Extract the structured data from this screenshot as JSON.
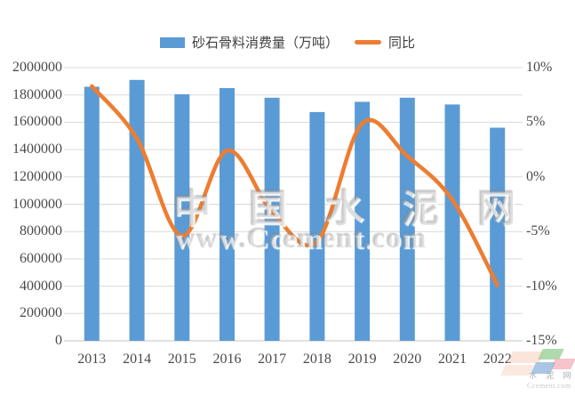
{
  "legend": {
    "bar_label": "砂石骨料消费量（万吨）",
    "line_label": "同比"
  },
  "watermark": {
    "line1": "中 国 水 泥 网",
    "line2": "www.Ccement.com"
  },
  "corner_logo": {
    "text": "水 泥 网",
    "subtext": "Ccement.com"
  },
  "colors": {
    "bar": "#5B9BD5",
    "line": "#ED7D31",
    "gridline": "#D9D9D9",
    "baseline": "#C6C6C6",
    "tick_text": "#4a4a4a"
  },
  "chart_data": {
    "type": "bar+line combo",
    "categories": [
      "2013",
      "2014",
      "2015",
      "2016",
      "2017",
      "2018",
      "2019",
      "2020",
      "2021",
      "2022"
    ],
    "series": [
      {
        "name": "砂石骨料消费量（万吨）",
        "type": "bar",
        "axis": "left",
        "color": "#5B9BD5",
        "values": [
          1860000,
          1910000,
          1805000,
          1850000,
          1780000,
          1675000,
          1750000,
          1780000,
          1730000,
          1560000
        ]
      },
      {
        "name": "同比",
        "type": "line",
        "axis": "right",
        "unit": "%",
        "color": "#ED7D31",
        "smooth": true,
        "values": [
          8.3,
          3.5,
          -5.4,
          2.4,
          -3.2,
          -5.9,
          4.9,
          1.9,
          -2.1,
          -9.9
        ]
      }
    ],
    "y_left": {
      "min": 0,
      "max": 2000000,
      "step": 200000,
      "tick_labels": [
        "0",
        "200000",
        "400000",
        "600000",
        "800000",
        "1000000",
        "1200000",
        "1400000",
        "1600000",
        "1800000",
        "2000000"
      ]
    },
    "y_right": {
      "min": -15,
      "max": 10,
      "label_step": 5,
      "tick_labels": [
        "10%",
        "5%",
        "0%",
        "-5%",
        "-10%",
        "-15%"
      ]
    },
    "grid": true,
    "legend_position": "top",
    "title": ""
  }
}
